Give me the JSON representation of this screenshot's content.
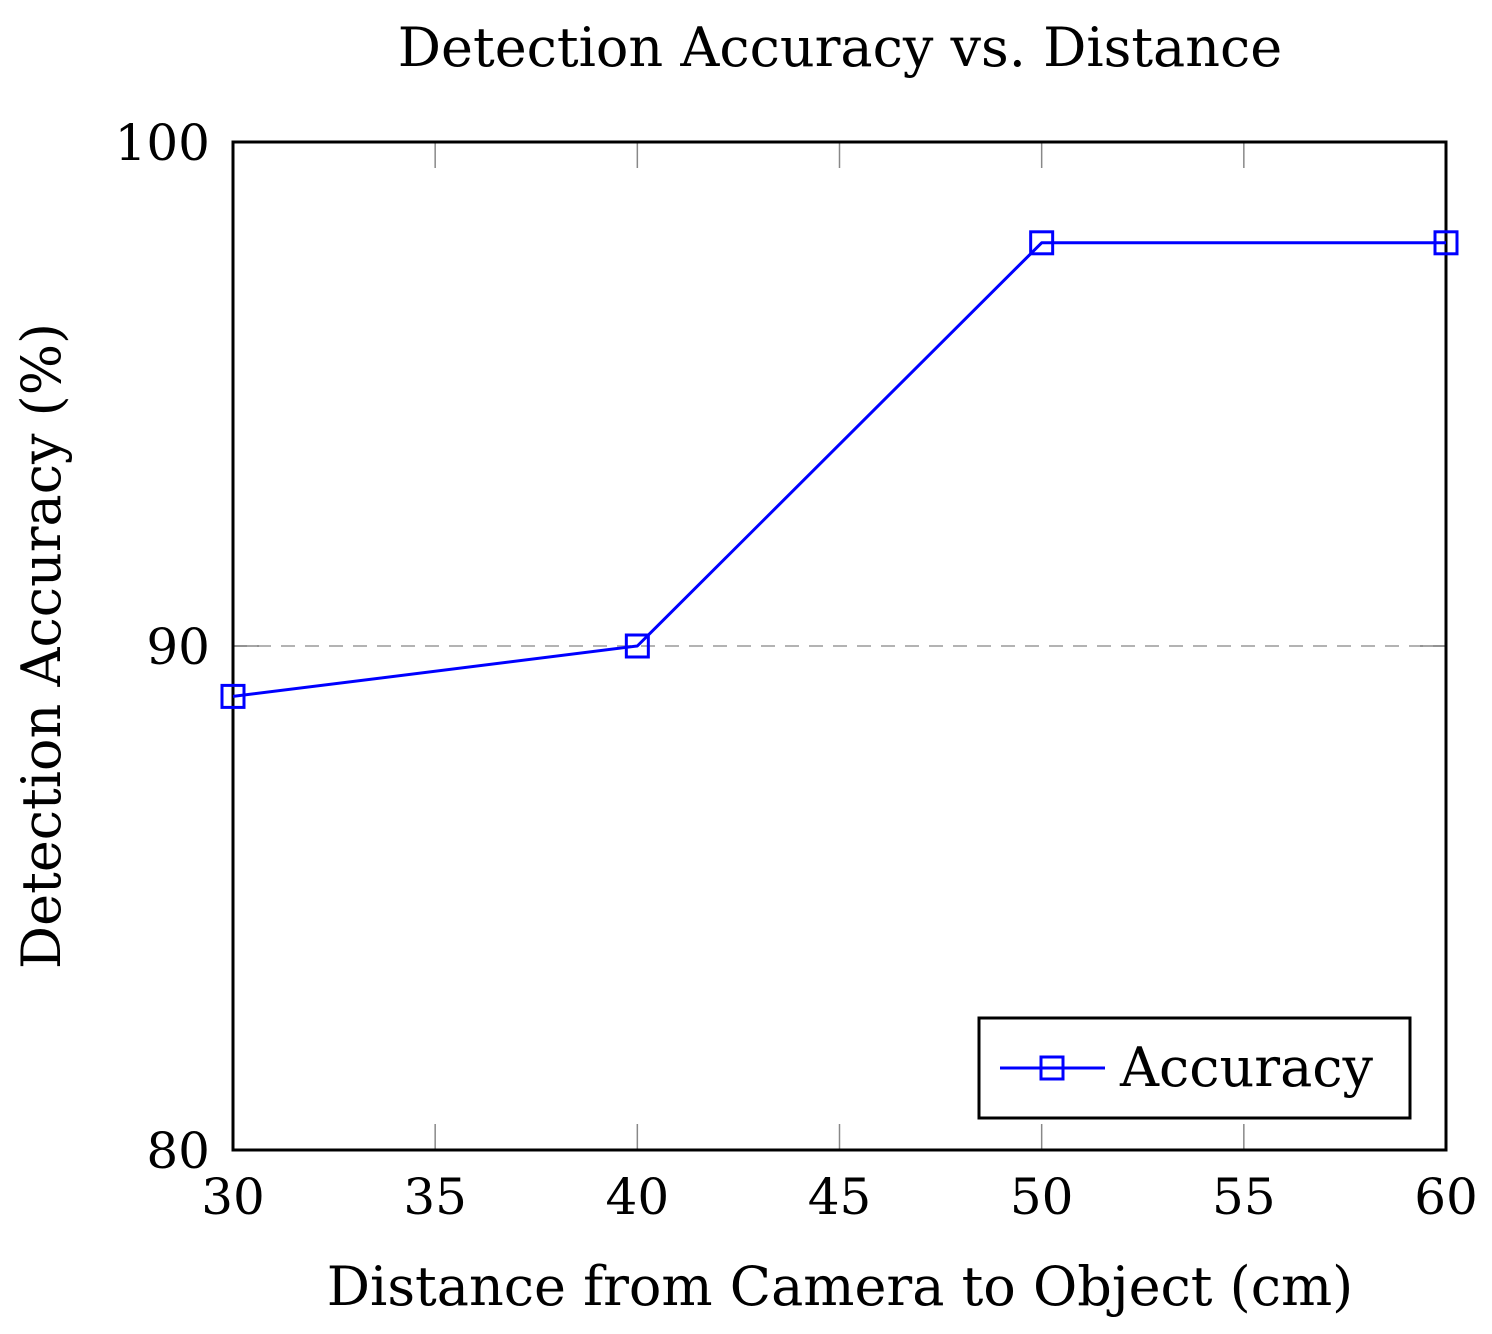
{
  "chart_data": {
    "type": "line",
    "title": "Detection Accuracy vs. Distance",
    "xlabel": "Distance from Camera to Object (cm)",
    "ylabel": "Detection Accuracy (%)",
    "xlim": [
      30,
      60
    ],
    "ylim": [
      80,
      100
    ],
    "xticks": [
      30,
      35,
      40,
      45,
      50,
      55,
      60
    ],
    "yticks": [
      80,
      90,
      100
    ],
    "grid": "dashed horizontal line at 90",
    "legend_position": "bottom-right",
    "series": [
      {
        "name": "Accuracy",
        "color": "#0000ff",
        "marker": "square",
        "x": [
          30,
          40,
          50,
          60
        ],
        "y": [
          89,
          90,
          98,
          98
        ]
      }
    ]
  }
}
